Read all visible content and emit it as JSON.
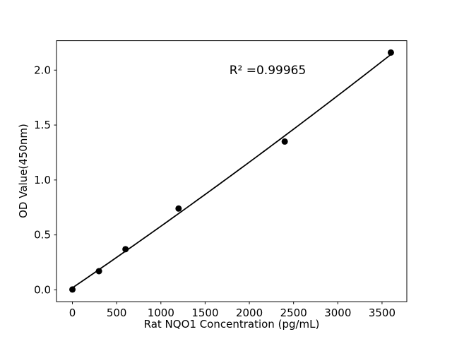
{
  "chart_data": {
    "type": "scatter",
    "annotation": "R² =0.99965",
    "xlabel": "Rat NQO1 Concentration (pg/mL)",
    "ylabel": "OD Value(450nm)",
    "x": [
      0,
      300,
      600,
      1200,
      2400,
      3600
    ],
    "y": [
      0.003,
      0.17,
      0.37,
      0.74,
      1.35,
      2.16
    ],
    "fit": "quadratic",
    "xlim": [
      -180,
      3780
    ],
    "ylim": [
      -0.108,
      2.268
    ],
    "xticks": [
      0,
      500,
      1000,
      1500,
      2000,
      2500,
      3000,
      3500
    ],
    "xtick_labels": [
      "0",
      "500",
      "1000",
      "1500",
      "2000",
      "2500",
      "3000",
      "3500"
    ],
    "yticks": [
      0.0,
      0.5,
      1.0,
      1.5,
      2.0
    ],
    "ytick_labels": [
      "0.0",
      "0.5",
      "1.0",
      "1.5",
      "2.0"
    ],
    "grid": false,
    "legend": null,
    "colors": {
      "marker": "#000000",
      "line": "#000000",
      "axis": "#000000",
      "text": "#000000",
      "background": "#ffffff"
    }
  }
}
